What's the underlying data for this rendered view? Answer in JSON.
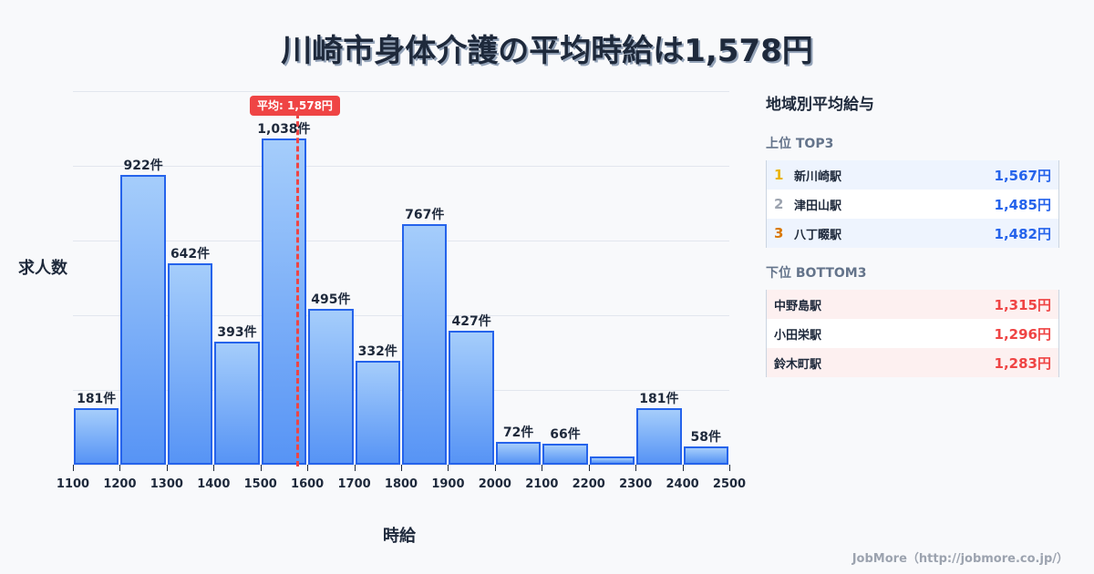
{
  "title": "川崎市身体介護の平均時給は1,578円",
  "chart_data": {
    "type": "bar",
    "title": "川崎市身体介護の平均時給は1,578円",
    "xlabel": "時給",
    "ylabel": "求人数",
    "x_ticks": [
      "1100",
      "1200",
      "1300",
      "1400",
      "1500",
      "1600",
      "1700",
      "1800",
      "1900",
      "2000",
      "2100",
      "2200",
      "2300",
      "2400",
      "2500"
    ],
    "categories": [
      "1100-1200",
      "1200-1300",
      "1300-1400",
      "1400-1500",
      "1500-1600",
      "1600-1700",
      "1700-1800",
      "1800-1900",
      "1900-2000",
      "2000-2100",
      "2100-2200",
      "2200-2300",
      "2300-2400",
      "2400-2500"
    ],
    "values": [
      181,
      922,
      642,
      393,
      1038,
      495,
      332,
      767,
      427,
      72,
      66,
      25,
      181,
      58
    ],
    "labels": [
      "181件",
      "922件",
      "642件",
      "393件",
      "1,038件",
      "495件",
      "332件",
      "767件",
      "427件",
      "72件",
      "66件",
      "",
      "181件",
      "58件"
    ],
    "ylim": [
      0,
      1190
    ],
    "grid": true,
    "annotation": {
      "label": "平均: 1,578円",
      "x": 1578,
      "color": "#ef4444"
    },
    "bar_color": "#5794f5",
    "bar_border_color": "#2563eb"
  },
  "panel": {
    "title": "地域別平均給与",
    "top_title": "上位 TOP3",
    "top": [
      {
        "rank": "1",
        "name": "新川崎駅",
        "value": "1,567円",
        "rank_color": "#eab308"
      },
      {
        "rank": "2",
        "name": "津田山駅",
        "value": "1,485円",
        "rank_color": "#9ca3af"
      },
      {
        "rank": "3",
        "name": "八丁畷駅",
        "value": "1,482円",
        "rank_color": "#d97706"
      }
    ],
    "bottom_title": "下位 BOTTOM3",
    "bottom": [
      {
        "name": "中野島駅",
        "value": "1,315円"
      },
      {
        "name": "小田栄駅",
        "value": "1,296円"
      },
      {
        "name": "鈴木町駅",
        "value": "1,283円"
      }
    ]
  },
  "footer": "JobMore（http://jobmore.co.jp/）"
}
